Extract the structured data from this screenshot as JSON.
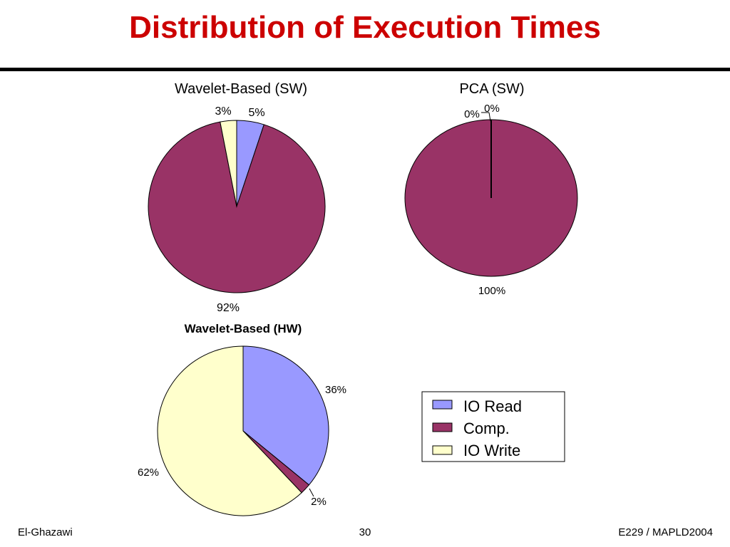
{
  "slide": {
    "title": "Distribution of Execution Times",
    "footer_left": "El-Ghazawi",
    "footer_center": "30",
    "footer_right": "E229 / MAPLD2004"
  },
  "colors": {
    "title": "#cc0000",
    "io_read": "#9999ff",
    "comp": "#993366",
    "io_write": "#ffffcc"
  },
  "chart_data": [
    {
      "type": "pie",
      "title": "Wavelet-Based (SW)",
      "slices": [
        {
          "label": "IO Read",
          "value": 5,
          "data_label": "5%"
        },
        {
          "label": "Comp.",
          "value": 92,
          "data_label": "92%"
        },
        {
          "label": "IO Write",
          "value": 3,
          "data_label": "3%"
        }
      ]
    },
    {
      "type": "pie",
      "title": "PCA (SW)",
      "slices": [
        {
          "label": "IO Read",
          "value": 0,
          "data_label": "0%"
        },
        {
          "label": "Comp.",
          "value": 100,
          "data_label": "100%"
        },
        {
          "label": "IO Write",
          "value": 0,
          "data_label": "0%"
        }
      ]
    },
    {
      "type": "pie",
      "title": "Wavelet-Based (HW)",
      "slices": [
        {
          "label": "IO Read",
          "value": 36,
          "data_label": "36%"
        },
        {
          "label": "Comp.",
          "value": 2,
          "data_label": "2%"
        },
        {
          "label": "IO Write",
          "value": 62,
          "data_label": "62%"
        }
      ]
    }
  ],
  "legend": {
    "entries": [
      "IO Read",
      "Comp.",
      "IO Write"
    ]
  }
}
